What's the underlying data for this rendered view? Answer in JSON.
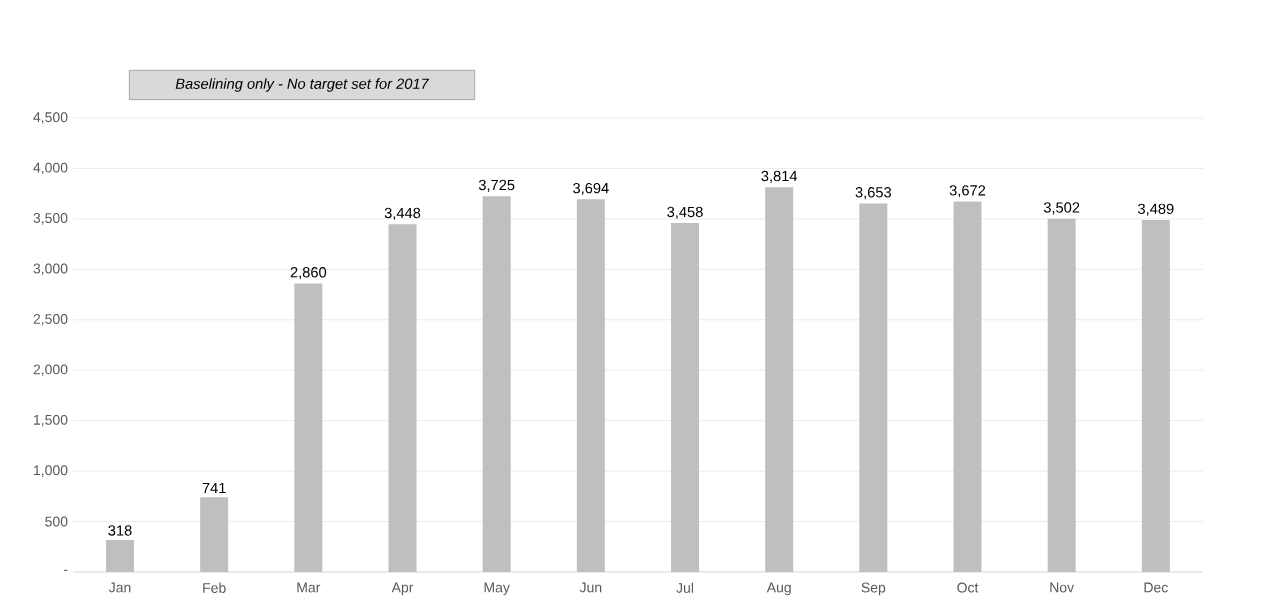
{
  "chart_data": {
    "type": "bar",
    "categories": [
      "Jan",
      "Feb",
      "Mar",
      "Apr",
      "May",
      "Jun",
      "Jul",
      "Aug",
      "Sep",
      "Oct",
      "Nov",
      "Dec"
    ],
    "values": [
      318,
      741,
      2860,
      3448,
      3725,
      3694,
      3458,
      3814,
      3653,
      3672,
      3502,
      3489
    ],
    "value_labels": [
      "318",
      "741",
      "2,860",
      "3,448",
      "3,725",
      "3,694",
      "3,458",
      "3,814",
      "3,653",
      "3,672",
      "3,502",
      "3,489"
    ],
    "color": "#bfbfbf",
    "ylim": [
      0,
      4500
    ],
    "yticks": [
      {
        "value": 0,
        "label": "-"
      },
      {
        "value": 500,
        "label": "500"
      },
      {
        "value": 1000,
        "label": "1,000"
      },
      {
        "value": 1500,
        "label": "1,500"
      },
      {
        "value": 2000,
        "label": "2,000"
      },
      {
        "value": 2500,
        "label": "2,500"
      },
      {
        "value": 3000,
        "label": "3,000"
      },
      {
        "value": 3500,
        "label": "3,500"
      },
      {
        "value": 4000,
        "label": "4,000"
      },
      {
        "value": 4500,
        "label": "4,500"
      }
    ],
    "grid": "y",
    "annotations": [
      "Baselining only - No target set for 2017"
    ]
  }
}
